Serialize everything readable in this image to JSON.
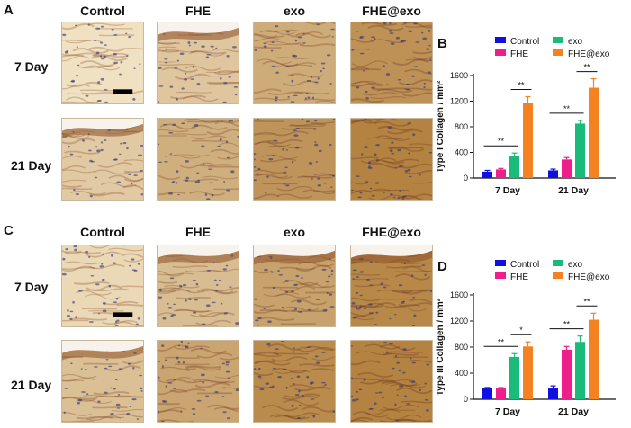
{
  "panels": {
    "A": {
      "letter": "A",
      "columns": [
        "Control",
        "FHE",
        "exo",
        "FHE@exo"
      ],
      "rows": [
        "7 Day",
        "21 Day"
      ]
    },
    "B": {
      "letter": "B"
    },
    "C": {
      "letter": "C",
      "columns": [
        "Control",
        "FHE",
        "exo",
        "FHE@exo"
      ],
      "rows": [
        "7 Day",
        "21 Day"
      ]
    },
    "D": {
      "letter": "D"
    }
  },
  "colors": {
    "Control": "#1010e0",
    "FHE": "#ee1f8c",
    "exo": "#1aba7a",
    "FHE@exo": "#f58220"
  },
  "chart_data": [
    {
      "type": "bar",
      "panel": "B",
      "ylabel": "Type I Collagen / mm²",
      "xlabel": "",
      "categories": [
        "7 Day",
        "21 Day"
      ],
      "ylim": [
        0,
        1600
      ],
      "yticks": [
        0,
        400,
        800,
        1200,
        1600
      ],
      "legend_position": "top",
      "series": [
        {
          "name": "Control",
          "values": [
            100,
            120
          ],
          "errors": [
            20,
            20
          ]
        },
        {
          "name": "FHE",
          "values": [
            135,
            290
          ],
          "errors": [
            15,
            30
          ]
        },
        {
          "name": "exo",
          "values": [
            340,
            850
          ],
          "errors": [
            50,
            50
          ]
        },
        {
          "name": "FHE@exo",
          "values": [
            1170,
            1410
          ],
          "errors": [
            100,
            140
          ]
        }
      ],
      "annotations": [
        {
          "label": "**",
          "group": "7 Day",
          "from": "Control",
          "to": "exo"
        },
        {
          "label": "**",
          "group": "7 Day",
          "from": "exo",
          "to": "FHE@exo"
        },
        {
          "label": "**",
          "group": "21 Day",
          "from": "Control",
          "to": "exo"
        },
        {
          "label": "**",
          "group": "21 Day",
          "from": "exo",
          "to": "FHE@exo"
        }
      ]
    },
    {
      "type": "bar",
      "panel": "D",
      "ylabel": "Type III Collagen / mm²",
      "xlabel": "",
      "categories": [
        "7 Day",
        "21 Day"
      ],
      "ylim": [
        0,
        1600
      ],
      "yticks": [
        0,
        400,
        800,
        1200,
        1600
      ],
      "legend_position": "top",
      "series": [
        {
          "name": "Control",
          "values": [
            165,
            165
          ],
          "errors": [
            15,
            40
          ]
        },
        {
          "name": "FHE",
          "values": [
            165,
            760
          ],
          "errors": [
            15,
            50
          ]
        },
        {
          "name": "exo",
          "values": [
            650,
            880
          ],
          "errors": [
            50,
            90
          ]
        },
        {
          "name": "FHE@exo",
          "values": [
            810,
            1220
          ],
          "errors": [
            70,
            100
          ]
        }
      ],
      "annotations": [
        {
          "label": "**",
          "group": "7 Day",
          "from": "Control",
          "to": "exo"
        },
        {
          "label": "*",
          "group": "7 Day",
          "from": "exo",
          "to": "FHE@exo"
        },
        {
          "label": "**",
          "group": "21 Day",
          "from": "Control",
          "to": "exo"
        },
        {
          "label": "**",
          "group": "21 Day",
          "from": "exo",
          "to": "FHE@exo"
        }
      ]
    }
  ]
}
